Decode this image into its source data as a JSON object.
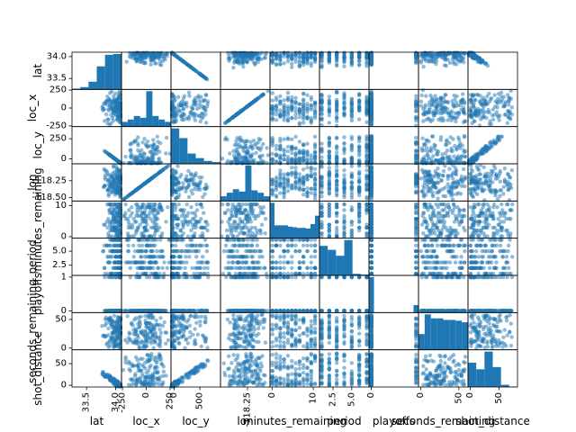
{
  "chart_data": {
    "type": "scatter",
    "matrix": "scatter-matrix",
    "color": "#1f77b4",
    "variables": [
      "lat",
      "loc_x",
      "loc_y",
      "lon",
      "minutes_remaining",
      "period",
      "playoffs",
      "seconds_remaining",
      "shot_distance"
    ],
    "x_ticks": [
      {
        "labels": [
          "33.5",
          "34.0"
        ],
        "ticks": [
          33.5,
          34.0
        ],
        "range": [
          33.25,
          34.1
        ]
      },
      {
        "labels": [
          "-250",
          "0",
          "250"
        ],
        "ticks": [
          -250,
          0,
          250
        ],
        "range": [
          -260,
          260
        ]
      },
      {
        "labels": [
          "0",
          "500"
        ],
        "ticks": [
          0,
          500
        ],
        "range": [
          -60,
          900
        ]
      },
      {
        "labels": [
          "-118.25"
        ],
        "ticks": [
          -118.25
        ],
        "range": [
          -118.55,
          -118.0
        ]
      },
      {
        "labels": [
          "0",
          "10"
        ],
        "ticks": [
          0,
          10
        ],
        "range": [
          -0.5,
          11.5
        ]
      },
      {
        "labels": [
          "2.5",
          "5.0"
        ],
        "ticks": [
          2.5,
          5.0
        ],
        "range": [
          0.7,
          7.3
        ]
      },
      {
        "labels": [
          "0"
        ],
        "ticks": [
          0
        ],
        "range": [
          -0.05,
          1.05
        ]
      },
      {
        "labels": [
          "0",
          "50"
        ],
        "ticks": [
          0,
          50
        ],
        "range": [
          -3,
          62
        ]
      },
      {
        "labels": [
          "0",
          "50"
        ],
        "ticks": [
          0,
          50
        ],
        "range": [
          -4,
          82
        ]
      }
    ],
    "y_ticks": [
      {
        "labels": [
          "34.0",
          "33.5"
        ],
        "ticks": [
          34.0,
          33.5
        ],
        "range": [
          33.25,
          34.1
        ]
      },
      {
        "labels": [
          "250",
          "0",
          "-250"
        ],
        "ticks": [
          250,
          0,
          -250
        ],
        "range": [
          -260,
          260
        ]
      },
      {
        "labels": [
          "250",
          "0"
        ],
        "ticks": [
          250,
          0
        ],
        "range": [
          -60,
          400
        ]
      },
      {
        "labels": [
          "-118.25",
          "-118.50"
        ],
        "ticks": [
          -118.25,
          -118.5
        ],
        "range": [
          -118.55,
          -118.0
        ]
      },
      {
        "labels": [
          "10",
          "0"
        ],
        "ticks": [
          10,
          0
        ],
        "range": [
          -0.5,
          11.5
        ]
      },
      {
        "labels": [
          "5.0",
          "2.5"
        ],
        "ticks": [
          5.0,
          2.5
        ],
        "range": [
          0.7,
          7.3
        ]
      },
      {
        "labels": [
          "1",
          "0"
        ],
        "ticks": [
          1,
          0
        ],
        "range": [
          -0.05,
          1.05
        ]
      },
      {
        "labels": [
          "50",
          "0"
        ],
        "ticks": [
          50,
          0
        ],
        "range": [
          -3,
          62
        ]
      },
      {
        "labels": [
          "50",
          "0"
        ],
        "ticks": [
          50,
          0
        ],
        "range": [
          -4,
          82
        ]
      }
    ],
    "histograms": [
      [
        1,
        3,
        10,
        30,
        45,
        46
      ],
      [
        8,
        12,
        18,
        15,
        60,
        18,
        12,
        8
      ],
      [
        62,
        45,
        18,
        10,
        5,
        3
      ],
      [
        8,
        14,
        20,
        16,
        60,
        18,
        14,
        8
      ],
      [
        55,
        20,
        20,
        20,
        18,
        17,
        16,
        16,
        15,
        22,
        35
      ],
      [
        75,
        65,
        50,
        90,
        4,
        2
      ],
      [
        95,
        0,
        0,
        0,
        0,
        0,
        0,
        0,
        0,
        20
      ],
      [
        20,
        45,
        40,
        40,
        38,
        38,
        37,
        35
      ],
      [
        55,
        40,
        80,
        45,
        5,
        1
      ]
    ]
  }
}
